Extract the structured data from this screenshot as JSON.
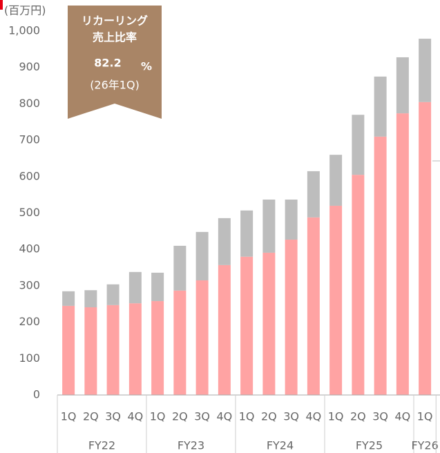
{
  "chart_data": {
    "type": "stacked_bar",
    "unit_label": "(百万円)",
    "categories": [
      "1Q",
      "2Q",
      "3Q",
      "4Q",
      "1Q",
      "2Q",
      "3Q",
      "4Q",
      "1Q",
      "2Q",
      "3Q",
      "4Q",
      "1Q",
      "2Q",
      "3Q",
      "4Q",
      "1Q"
    ],
    "groups": [
      {
        "label": "FY22",
        "count": 4
      },
      {
        "label": "FY23",
        "count": 4
      },
      {
        "label": "FY24",
        "count": 4
      },
      {
        "label": "FY25",
        "count": 4
      },
      {
        "label": "FY26",
        "count": 1
      }
    ],
    "series": [
      {
        "color": "#ffa3a3",
        "values": [
          245,
          241,
          247,
          252,
          258,
          287,
          315,
          357,
          380,
          391,
          427,
          488,
          520,
          605,
          710,
          774,
          805
        ]
      },
      {
        "color": "#bdbdbd",
        "values": [
          40,
          47,
          57,
          86,
          78,
          123,
          133,
          129,
          127,
          146,
          110,
          127,
          140,
          165,
          165,
          154,
          174
        ]
      }
    ],
    "ylim": [
      0,
      1000
    ],
    "yticks": [
      0,
      100,
      200,
      300,
      400,
      500,
      600,
      700,
      800,
      900,
      {
        "value": 1000,
        "label": "1,000"
      }
    ],
    "annotation": {
      "title_lines": [
        "リカーリング",
        "売上比率"
      ],
      "value": "82.2",
      "unit": "%",
      "note": "(26年1Q)"
    }
  }
}
